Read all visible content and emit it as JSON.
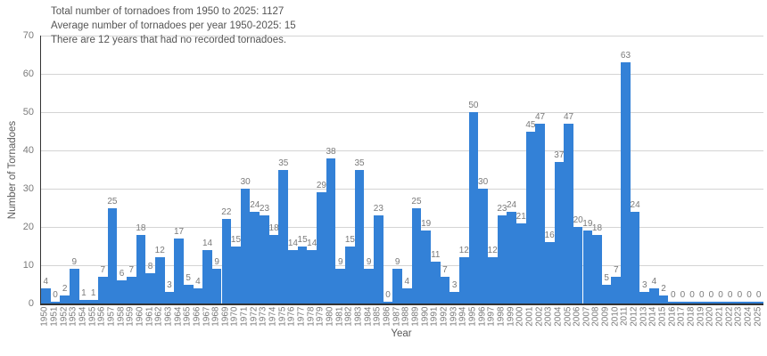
{
  "summary": {
    "line1": "Total number of tornadoes from 1950 to 2025: 1127",
    "line2": "Average number of tornadoes per year 1950-2025: 15",
    "line3": "There are 12 years that had no recorded tornadoes."
  },
  "chart_data": {
    "type": "bar",
    "title": "",
    "xlabel": "Year",
    "ylabel": "Number of Tornadoes",
    "ylim": [
      0,
      70
    ],
    "yticks": [
      0,
      10,
      20,
      30,
      40,
      50,
      60,
      70
    ],
    "grid": true,
    "legend": false,
    "bar_labels_shown": true,
    "categories": [
      "1950",
      "1951",
      "1952",
      "1953",
      "1954",
      "1955",
      "1956",
      "1957",
      "1958",
      "1959",
      "1960",
      "1961",
      "1962",
      "1963",
      "1964",
      "1965",
      "1966",
      "1967",
      "1968",
      "1969",
      "1970",
      "1971",
      "1972",
      "1973",
      "1974",
      "1975",
      "1976",
      "1977",
      "1978",
      "1979",
      "1980",
      "1981",
      "1982",
      "1983",
      "1984",
      "1985",
      "1986",
      "1987",
      "1988",
      "1989",
      "1990",
      "1991",
      "1992",
      "1993",
      "1994",
      "1995",
      "1996",
      "1997",
      "1998",
      "1999",
      "2000",
      "2001",
      "2002",
      "2003",
      "2004",
      "2005",
      "2006",
      "2007",
      "2008",
      "2009",
      "2010",
      "2011",
      "2012",
      "2013",
      "2014",
      "2015",
      "2016",
      "2017",
      "2018",
      "2019",
      "2020",
      "2021",
      "2022",
      "2023",
      "2024",
      "2025"
    ],
    "values": [
      4,
      0,
      2,
      9,
      1,
      1,
      7,
      25,
      6,
      7,
      18,
      8,
      12,
      3,
      17,
      5,
      4,
      14,
      9,
      22,
      15,
      30,
      24,
      23,
      18,
      35,
      14,
      15,
      14,
      29,
      38,
      9,
      15,
      35,
      9,
      23,
      0,
      9,
      4,
      25,
      19,
      11,
      7,
      3,
      12,
      50,
      30,
      12,
      23,
      24,
      21,
      45,
      47,
      16,
      37,
      47,
      20,
      19,
      18,
      5,
      7,
      63,
      24,
      3,
      4,
      2,
      0,
      0,
      0,
      0,
      0,
      0,
      0,
      0,
      0,
      0
    ]
  },
  "colors": {
    "bar": "#3381d7",
    "grid": "#d4d4d4",
    "axis": "#333333",
    "tick_text": "#7a7a7a",
    "title_text": "#555555",
    "axis_title_text": "#595959"
  }
}
